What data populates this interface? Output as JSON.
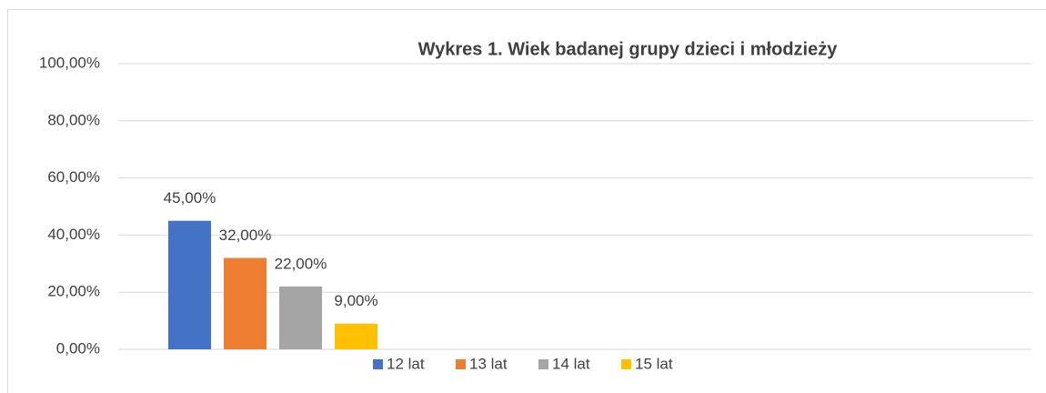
{
  "chart_data": {
    "type": "bar",
    "title": "Wykres 1. Wiek badanej grupy dzieci i młodzieży",
    "categories": [
      null
    ],
    "series": [
      {
        "name": "12 lat",
        "color": "#4472c4",
        "values": [
          45
        ],
        "value_labels": [
          "45,00%"
        ]
      },
      {
        "name": "13 lat",
        "color": "#ed7d31",
        "values": [
          32
        ],
        "value_labels": [
          "32,00%"
        ]
      },
      {
        "name": "14 lat",
        "color": "#a5a5a5",
        "values": [
          22
        ],
        "value_labels": [
          "22,00%"
        ]
      },
      {
        "name": "15 lat",
        "color": "#ffc000",
        "values": [
          9
        ],
        "value_labels": [
          "9,00%"
        ]
      }
    ],
    "ylim": [
      0,
      100
    ],
    "yticks": [
      {
        "value": 0,
        "label": "0,00%"
      },
      {
        "value": 20,
        "label": "20,00%"
      },
      {
        "value": 40,
        "label": "40,00%"
      },
      {
        "value": 60,
        "label": "60,00%"
      },
      {
        "value": 80,
        "label": "80,00%"
      },
      {
        "value": 100,
        "label": "100,00%"
      }
    ],
    "grid": true,
    "legend": "bottom"
  }
}
